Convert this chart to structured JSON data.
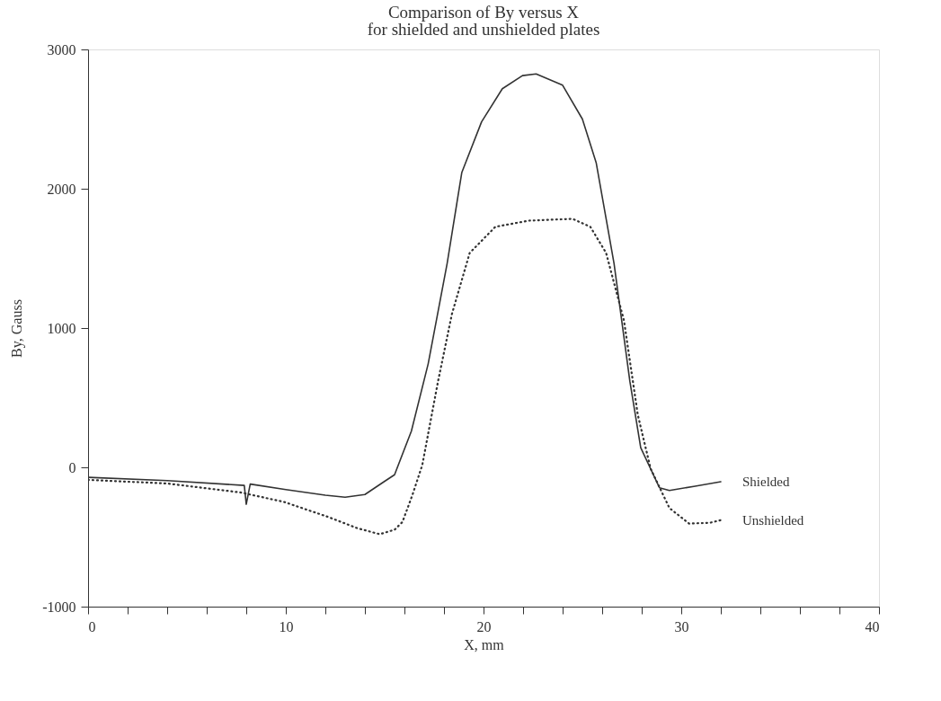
{
  "chart_data": {
    "type": "line",
    "title": "Comparison of By versus X",
    "subtitle": "for shielded and unshielded plates",
    "xlabel": "X, mm",
    "ylabel": "By, Gauss",
    "xlim": [
      0,
      40
    ],
    "ylim": [
      -1000,
      3000
    ],
    "xticks": [
      0,
      {
        "value": 2,
        "label": null
      },
      {
        "value": 4,
        "label": null
      },
      {
        "value": 6,
        "label": null
      },
      {
        "value": 8,
        "label": null
      },
      10,
      {
        "value": 12,
        "label": null
      },
      {
        "value": 14,
        "label": null
      },
      {
        "value": 16,
        "label": null
      },
      {
        "value": 18,
        "label": null
      },
      20,
      {
        "value": 22,
        "label": null
      },
      {
        "value": 24,
        "label": null
      },
      {
        "value": 26,
        "label": null
      },
      {
        "value": 28,
        "label": null
      },
      30,
      {
        "value": 32,
        "label": null
      },
      {
        "value": 34,
        "label": null
      },
      {
        "value": 36,
        "label": null
      },
      {
        "value": 38,
        "label": null
      },
      40
    ],
    "yticks": [
      -1000,
      0,
      1000,
      2000,
      3000
    ],
    "grid": false,
    "marker": "none",
    "series": [
      {
        "name": "Shielded",
        "color": "#333333",
        "line_style": "solid",
        "x": [
          0,
          4,
          7.9,
          8.0,
          8.2,
          10,
          12,
          13,
          14,
          15,
          15.5,
          16.35,
          17.2,
          18.16,
          18.9,
          19.9,
          20.95,
          21.97,
          22.66,
          24.0,
          25.0,
          25.7,
          26.6,
          27.4,
          27.95,
          28.9,
          29.4,
          30.7,
          32.0
        ],
        "values": [
          -72,
          -95,
          -130,
          -265,
          -120,
          -160,
          -200,
          -215,
          -195,
          -100,
          -53,
          260,
          743,
          1464,
          2116,
          2480,
          2718,
          2812,
          2824,
          2743,
          2500,
          2185,
          1464,
          618,
          141,
          -147,
          -166,
          -135,
          -103
        ]
      },
      {
        "name": "Unshielded",
        "color": "#333333",
        "line_style": "dotted",
        "x": [
          0,
          4,
          7.7,
          9.9,
          12.1,
          13.6,
          14.75,
          15.5,
          15.9,
          16.4,
          16.9,
          17.7,
          18.4,
          19.3,
          20.6,
          22.3,
          24.5,
          25.4,
          26.2,
          27.1,
          27.8,
          28.45,
          29.4,
          30.4,
          31.45,
          32.0
        ],
        "values": [
          -90,
          -116,
          -180,
          -248,
          -354,
          -436,
          -480,
          -448,
          -392,
          -200,
          15,
          618,
          1100,
          1539,
          1727,
          1771,
          1784,
          1727,
          1539,
          1056,
          379,
          -9,
          -292,
          -404,
          -398,
          -379
        ]
      }
    ]
  }
}
